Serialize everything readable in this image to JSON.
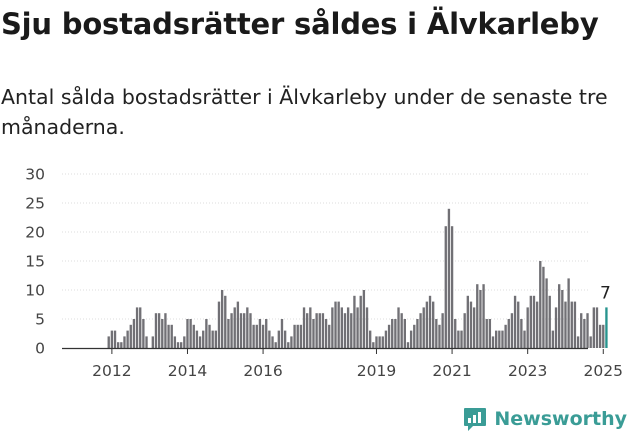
{
  "title": "Sju bostadsrätter såldes i Älvkarleby",
  "subtitle": "Antal sålda bostadsrätter i Älvkarleby under de senaste tre månaderna.",
  "brand": {
    "name": "Newsworthy",
    "icon": "newsworthy-logo-icon"
  },
  "colors": {
    "bar": "#717075",
    "highlight": "#27948e",
    "grid": "#dddddd",
    "axis": "#333333",
    "brand": "#3a9c96"
  },
  "chart_data": {
    "type": "bar",
    "title": "Sju bostadsrätter såldes i Älvkarleby",
    "subtitle": "Antal sålda bostadsrätter i Älvkarleby under de senaste tre månaderna.",
    "xlabel": "",
    "ylabel": "",
    "ylim": [
      0,
      30
    ],
    "yticks": [
      0,
      5,
      10,
      15,
      20,
      25,
      30
    ],
    "xticks": [
      "2012",
      "2014",
      "2016",
      "2019",
      "2021",
      "2023",
      "2025"
    ],
    "grid": true,
    "legend": "none",
    "start": "2011-05",
    "frequency": "monthly",
    "values": [
      0,
      0,
      0,
      0,
      0,
      0,
      0,
      2,
      3,
      3,
      1,
      1,
      2,
      3,
      4,
      5,
      7,
      7,
      5,
      2,
      0,
      2,
      6,
      6,
      5,
      6,
      4,
      4,
      2,
      1,
      1,
      2,
      5,
      5,
      4,
      3,
      2,
      3,
      5,
      4,
      3,
      3,
      8,
      10,
      9,
      5,
      6,
      7,
      8,
      6,
      6,
      7,
      6,
      4,
      4,
      5,
      4,
      5,
      3,
      2,
      1,
      3,
      5,
      3,
      1,
      2,
      4,
      4,
      4,
      7,
      6,
      7,
      5,
      6,
      6,
      6,
      5,
      4,
      7,
      8,
      8,
      7,
      6,
      7,
      6,
      9,
      7,
      9,
      10,
      7,
      3,
      1,
      2,
      2,
      2,
      3,
      4,
      5,
      5,
      7,
      6,
      5,
      1,
      3,
      4,
      5,
      6,
      7,
      8,
      9,
      8,
      5,
      4,
      6,
      21,
      24,
      21,
      5,
      3,
      3,
      6,
      9,
      8,
      7,
      11,
      10,
      11,
      5,
      5,
      2,
      3,
      3,
      3,
      4,
      5,
      6,
      9,
      8,
      5,
      3,
      7,
      9,
      9,
      8,
      15,
      14,
      12,
      9,
      3,
      7,
      11,
      10,
      8,
      12,
      8,
      8,
      2,
      6,
      5,
      6,
      2,
      7,
      7,
      4,
      4,
      7
    ],
    "highlight_last": true,
    "annotations": [
      {
        "label": "7",
        "target": "last"
      }
    ]
  }
}
